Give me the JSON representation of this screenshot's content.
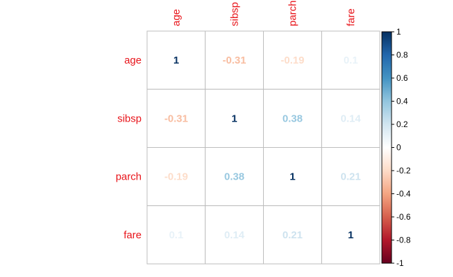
{
  "chart_data": {
    "type": "heatmap",
    "variables": [
      "age",
      "sibsp",
      "parch",
      "fare"
    ],
    "matrix": [
      [
        1,
        -0.31,
        -0.19,
        0.1
      ],
      [
        -0.31,
        1,
        0.38,
        0.14
      ],
      [
        -0.19,
        0.38,
        1,
        0.21
      ],
      [
        0.1,
        0.14,
        0.21,
        1
      ]
    ],
    "value_labels": [
      [
        "1",
        "-0.31",
        "-0.19",
        "0.1"
      ],
      [
        "-0.31",
        "1",
        "0.38",
        "0.14"
      ],
      [
        "-0.19",
        "0.38",
        "1",
        "0.21"
      ],
      [
        "0.1",
        "0.14",
        "0.21",
        "1"
      ]
    ],
    "colorbar": {
      "range": [
        -1,
        1
      ],
      "ticks": [
        1,
        0.8,
        0.6,
        0.4,
        0.2,
        0,
        -0.2,
        -0.4,
        -0.6,
        -0.8,
        -1
      ],
      "tick_labels": [
        "1",
        "0.8",
        "0.6",
        "0.4",
        "0.2",
        "0",
        "-0.2",
        "-0.4",
        "-0.6",
        "-0.8",
        "-1"
      ],
      "colors": {
        "negative_max": "#67001f",
        "neutral": "#ffffff",
        "positive_max": "#053061"
      }
    },
    "label_color": "#e8141a",
    "grid_color": "#bdbdbd"
  }
}
